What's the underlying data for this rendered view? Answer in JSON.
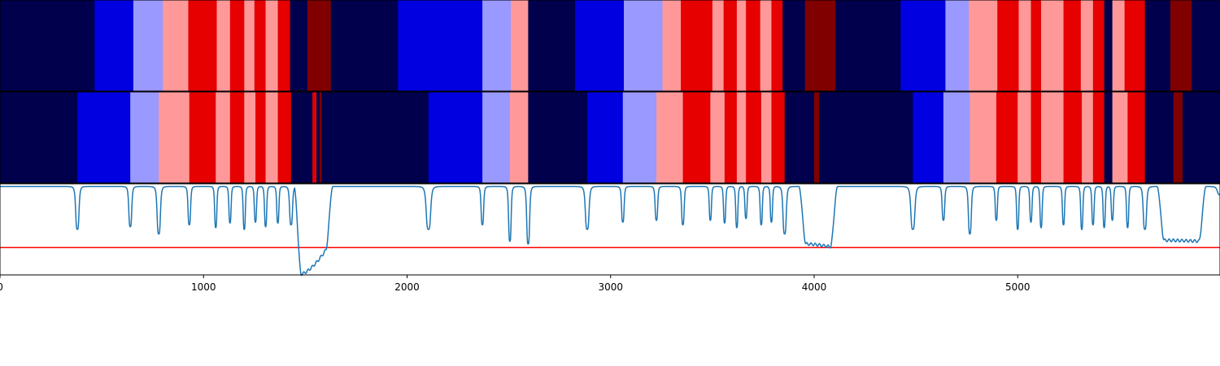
{
  "chart_data": [
    {
      "type": "heatmap",
      "label_colors": [
        "#00004c",
        "#0000e0",
        "#9999ff",
        "#ff9999",
        "#e60000",
        "#800000"
      ],
      "x_range": [
        0,
        5994
      ],
      "segments": [
        [
          0,
          465,
          0
        ],
        [
          465,
          655,
          1
        ],
        [
          655,
          800,
          2
        ],
        [
          800,
          925,
          3
        ],
        [
          925,
          1065,
          4
        ],
        [
          1065,
          1130,
          3
        ],
        [
          1130,
          1200,
          4
        ],
        [
          1200,
          1250,
          3
        ],
        [
          1250,
          1305,
          4
        ],
        [
          1305,
          1365,
          3
        ],
        [
          1365,
          1425,
          4
        ],
        [
          1425,
          1510,
          0
        ],
        [
          1510,
          1625,
          5
        ],
        [
          1625,
          1955,
          0
        ],
        [
          1955,
          2370,
          1
        ],
        [
          2370,
          2510,
          2
        ],
        [
          2510,
          2595,
          3
        ],
        [
          2595,
          2825,
          0
        ],
        [
          2825,
          3065,
          1
        ],
        [
          3065,
          3255,
          2
        ],
        [
          3255,
          3345,
          3
        ],
        [
          3345,
          3500,
          4
        ],
        [
          3500,
          3555,
          3
        ],
        [
          3555,
          3620,
          4
        ],
        [
          3620,
          3665,
          3
        ],
        [
          3665,
          3735,
          4
        ],
        [
          3735,
          3790,
          3
        ],
        [
          3790,
          3845,
          4
        ],
        [
          3845,
          3955,
          0
        ],
        [
          3955,
          4105,
          5
        ],
        [
          4105,
          4425,
          0
        ],
        [
          4425,
          4645,
          1
        ],
        [
          4645,
          4760,
          2
        ],
        [
          4760,
          4900,
          3
        ],
        [
          4900,
          5005,
          4
        ],
        [
          5005,
          5065,
          3
        ],
        [
          5065,
          5115,
          4
        ],
        [
          5115,
          5225,
          3
        ],
        [
          5225,
          5310,
          4
        ],
        [
          5310,
          5370,
          3
        ],
        [
          5370,
          5425,
          4
        ],
        [
          5425,
          5465,
          0
        ],
        [
          5465,
          5525,
          3
        ],
        [
          5525,
          5625,
          4
        ],
        [
          5625,
          5750,
          0
        ],
        [
          5750,
          5855,
          5
        ],
        [
          5855,
          5994,
          0
        ]
      ]
    },
    {
      "type": "heatmap",
      "label_colors": [
        "#00004c",
        "#0000e0",
        "#9999ff",
        "#ff9999",
        "#e60000",
        "#800000"
      ],
      "x_range": [
        0,
        5994
      ],
      "segments": [
        [
          0,
          380,
          0
        ],
        [
          380,
          640,
          1
        ],
        [
          640,
          780,
          2
        ],
        [
          780,
          930,
          3
        ],
        [
          930,
          1060,
          4
        ],
        [
          1060,
          1130,
          3
        ],
        [
          1130,
          1200,
          4
        ],
        [
          1200,
          1255,
          3
        ],
        [
          1255,
          1305,
          4
        ],
        [
          1305,
          1365,
          3
        ],
        [
          1365,
          1430,
          4
        ],
        [
          1430,
          1535,
          0
        ],
        [
          1535,
          1555,
          4
        ],
        [
          1555,
          1570,
          0
        ],
        [
          1570,
          1580,
          5
        ],
        [
          1580,
          2105,
          0
        ],
        [
          2105,
          2370,
          1
        ],
        [
          2370,
          2505,
          2
        ],
        [
          2505,
          2595,
          3
        ],
        [
          2595,
          2885,
          0
        ],
        [
          2885,
          3060,
          1
        ],
        [
          3060,
          3225,
          2
        ],
        [
          3225,
          3355,
          3
        ],
        [
          3355,
          3490,
          4
        ],
        [
          3490,
          3560,
          3
        ],
        [
          3560,
          3620,
          4
        ],
        [
          3620,
          3665,
          3
        ],
        [
          3665,
          3740,
          4
        ],
        [
          3740,
          3790,
          3
        ],
        [
          3790,
          3855,
          4
        ],
        [
          3855,
          4000,
          0
        ],
        [
          4000,
          4025,
          5
        ],
        [
          4025,
          4485,
          0
        ],
        [
          4485,
          4635,
          1
        ],
        [
          4635,
          4765,
          2
        ],
        [
          4765,
          4895,
          3
        ],
        [
          4895,
          5000,
          4
        ],
        [
          5000,
          5065,
          3
        ],
        [
          5065,
          5115,
          4
        ],
        [
          5115,
          5225,
          3
        ],
        [
          5225,
          5315,
          4
        ],
        [
          5315,
          5370,
          3
        ],
        [
          5370,
          5425,
          4
        ],
        [
          5425,
          5465,
          0
        ],
        [
          5465,
          5540,
          3
        ],
        [
          5540,
          5625,
          4
        ],
        [
          5625,
          5765,
          0
        ],
        [
          5765,
          5810,
          5
        ],
        [
          5810,
          5994,
          0
        ]
      ]
    },
    {
      "type": "line",
      "x_range": [
        0,
        5994
      ],
      "y_range": [
        0,
        1
      ],
      "line_color": "#1f77b4",
      "threshold_color": "#ff0000",
      "threshold": 0.3,
      "x_ticks": [
        0,
        1000,
        2000,
        3000,
        4000,
        5000
      ],
      "x_tick_labels": [
        "0",
        "1000",
        "2000",
        "3000",
        "4000",
        "5000"
      ],
      "baseline": 0.97,
      "dips": [
        [
          380,
          0.5,
          9
        ],
        [
          640,
          0.53,
          8
        ],
        [
          780,
          0.45,
          9
        ],
        [
          930,
          0.55,
          7
        ],
        [
          1060,
          0.52,
          6
        ],
        [
          1130,
          0.57,
          6
        ],
        [
          1200,
          0.5,
          6
        ],
        [
          1255,
          0.58,
          6
        ],
        [
          1305,
          0.53,
          6
        ],
        [
          1365,
          0.57,
          6
        ],
        [
          1430,
          0.55,
          8
        ],
        [
          2105,
          0.5,
          12
        ],
        [
          2370,
          0.55,
          7
        ],
        [
          2505,
          0.37,
          7
        ],
        [
          2595,
          0.34,
          8
        ],
        [
          2885,
          0.5,
          10
        ],
        [
          3060,
          0.58,
          7
        ],
        [
          3225,
          0.6,
          7
        ],
        [
          3355,
          0.55,
          7
        ],
        [
          3490,
          0.6,
          6
        ],
        [
          3560,
          0.57,
          6
        ],
        [
          3620,
          0.52,
          6
        ],
        [
          3665,
          0.62,
          6
        ],
        [
          3740,
          0.55,
          6
        ],
        [
          3790,
          0.58,
          6
        ],
        [
          3855,
          0.45,
          9
        ],
        [
          4485,
          0.5,
          11
        ],
        [
          4635,
          0.6,
          7
        ],
        [
          4765,
          0.45,
          8
        ],
        [
          4895,
          0.6,
          6
        ],
        [
          5000,
          0.5,
          6
        ],
        [
          5065,
          0.58,
          6
        ],
        [
          5115,
          0.52,
          6
        ],
        [
          5225,
          0.55,
          6
        ],
        [
          5315,
          0.5,
          6
        ],
        [
          5370,
          0.55,
          6
        ],
        [
          5425,
          0.52,
          6
        ],
        [
          5465,
          0.6,
          6
        ],
        [
          5540,
          0.52,
          6
        ],
        [
          5625,
          0.5,
          9
        ],
        [
          5994,
          0.88,
          14
        ]
      ],
      "troughs": [
        [
          1480,
          1600,
          0.01,
          0.27
        ],
        [
          3960,
          4080,
          0.34,
          0.31
        ],
        [
          5720,
          5890,
          0.38,
          0.37
        ]
      ]
    }
  ]
}
